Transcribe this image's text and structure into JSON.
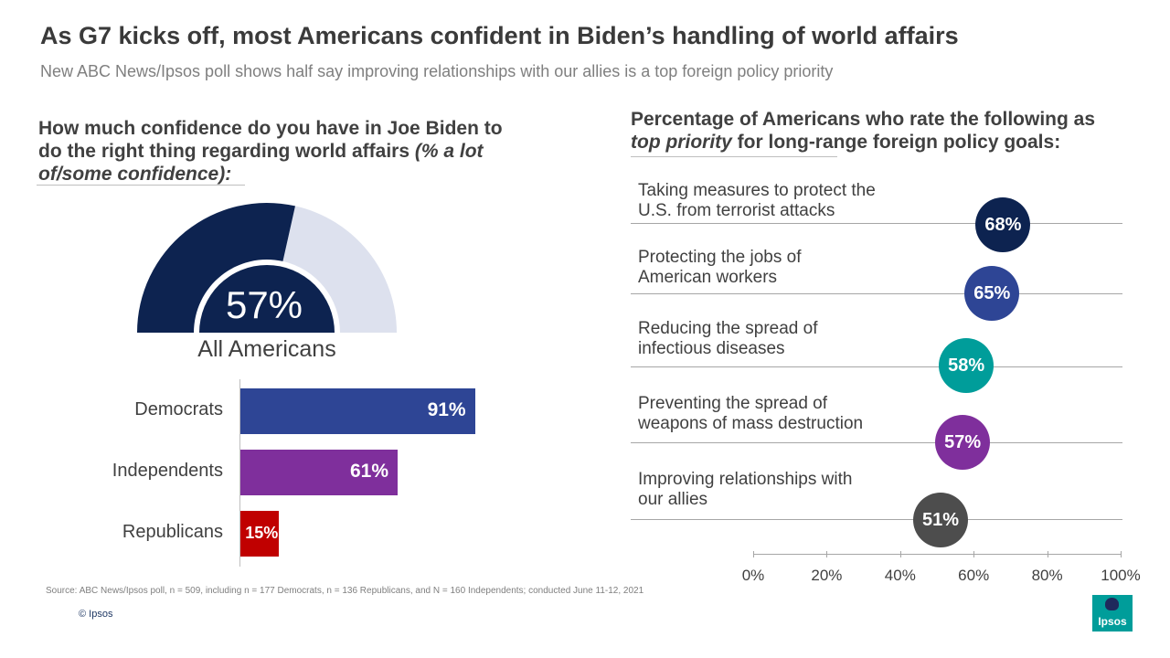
{
  "header": {
    "title": "As G7 kicks off, most Americans confident in Biden’s handling of world affairs",
    "subtitle": "New ABC News/Ipsos poll shows half say improving relationships with our allies is a top foreign policy priority"
  },
  "left_panel": {
    "question_main": "How much confidence do you have in Joe Biden to do the right thing regarding world affairs",
    "question_italic": "(% a lot of/some confidence):"
  },
  "right_panel": {
    "question_part1": "Percentage  of Americans  who rate the following as",
    "question_italic": "top priority",
    "question_part2": "for long-range foreign policy goals:"
  },
  "chart_data": [
    {
      "type": "gauge",
      "label": "All Americans",
      "value": 57,
      "value_label": "57%",
      "max": 100,
      "colors": {
        "fill": "#0d2350",
        "track": "#dde1ee"
      }
    },
    {
      "type": "bar",
      "orientation": "horizontal",
      "categories": [
        "Democrats",
        "Independents",
        "Republicans"
      ],
      "values": [
        91,
        61,
        15
      ],
      "value_labels": [
        "91%",
        "61%",
        "15%"
      ],
      "colors": [
        "#2e4595",
        "#7f2f9c",
        "#c00000"
      ],
      "xlim": [
        0,
        100
      ]
    },
    {
      "type": "scatter",
      "categories": [
        "Taking measures to protect the U.S. from terrorist attacks",
        "Protecting the jobs of American workers",
        "Reducing the spread of infectious diseases",
        "Preventing the spread of weapons of mass destruction",
        "Improving relationships with our allies"
      ],
      "label_lines": [
        [
          "Taking measures to protect the",
          "U.S. from terrorist attacks"
        ],
        [
          "Protecting the jobs of",
          "American workers"
        ],
        [
          "Reducing the spread of",
          "infectious diseases"
        ],
        [
          "Preventing the spread of",
          "weapons of mass destruction"
        ],
        [
          "Improving relationships with",
          "our allies"
        ]
      ],
      "values": [
        68,
        65,
        58,
        57,
        51
      ],
      "value_labels": [
        "68%",
        "65%",
        "58%",
        "57%",
        "51%"
      ],
      "colors": [
        "#0d2350",
        "#2e4595",
        "#009d9a",
        "#7f2f9c",
        "#4d4d4d"
      ],
      "xlim": [
        0,
        100
      ],
      "x_ticks": [
        "0%",
        "20%",
        "40%",
        "60%",
        "80%",
        "100%"
      ]
    }
  ],
  "footer": {
    "source": "Source: ABC News/Ipsos poll, n = 509, including n = 177 Democrats, n = 136 Republicans, and N = 160 Independents;  conducted June 11-12, 2021",
    "copyright": "© Ipsos",
    "logo_text": "Ipsos",
    "logo_color": "#009d9a"
  }
}
